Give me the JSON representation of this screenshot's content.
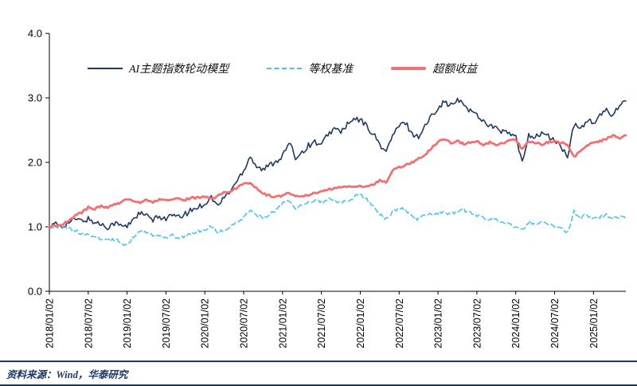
{
  "colors": {
    "model_line": "#1F3864",
    "benchmark_line": "#4DC3E8",
    "excess_line": "#F07173",
    "axis": "#000000",
    "footer_accent": "#1F3864",
    "background": "#FFFFFF"
  },
  "chart_data": {
    "type": "line",
    "title": "",
    "xlabel": "",
    "ylabel": "",
    "ylim": [
      0.0,
      4.0
    ],
    "y_ticks": [
      0.0,
      1.0,
      2.0,
      3.0,
      4.0
    ],
    "y_tick_labels": [
      "0.0",
      "1.0",
      "2.0",
      "3.0",
      "4.0"
    ],
    "x_unit": "monthly index starting 2018/01/02",
    "x_tick_positions": [
      0,
      6,
      12,
      18,
      24,
      30,
      36,
      42,
      48,
      54,
      60,
      66,
      72,
      78,
      84
    ],
    "x_tick_labels": [
      "2018/01/02",
      "2018/07/02",
      "2019/01/02",
      "2019/07/02",
      "2020/01/02",
      "2020/07/02",
      "2021/01/02",
      "2021/07/02",
      "2022/01/02",
      "2022/07/02",
      "2023/01/02",
      "2023/07/02",
      "2024/01/02",
      "2024/07/02",
      "2025/01/02"
    ],
    "grid": false,
    "legend_position": "top-inside",
    "series": [
      {
        "name": "AI主题指数轮动模型",
        "color": "#1F3864",
        "style": "solid",
        "width": 1.6,
        "noise": 0.045,
        "values": [
          1.0,
          1.04,
          1.01,
          1.07,
          1.12,
          1.09,
          1.12,
          1.07,
          1.04,
          1.0,
          1.06,
          1.02,
          1.0,
          1.14,
          1.21,
          1.17,
          1.1,
          1.16,
          1.13,
          1.18,
          1.14,
          1.2,
          1.26,
          1.31,
          1.36,
          1.46,
          1.32,
          1.46,
          1.56,
          1.72,
          1.88,
          2.1,
          1.94,
          1.88,
          1.96,
          2.02,
          2.1,
          2.3,
          2.08,
          2.16,
          2.26,
          2.32,
          2.26,
          2.44,
          2.52,
          2.48,
          2.58,
          2.66,
          2.66,
          2.56,
          2.44,
          2.28,
          2.16,
          2.42,
          2.56,
          2.62,
          2.44,
          2.4,
          2.56,
          2.72,
          2.86,
          2.94,
          2.88,
          2.96,
          2.9,
          2.8,
          2.74,
          2.64,
          2.58,
          2.52,
          2.48,
          2.44,
          2.4,
          1.98,
          2.44,
          2.38,
          2.46,
          2.4,
          2.34,
          2.24,
          2.08,
          2.58,
          2.52,
          2.66,
          2.6,
          2.72,
          2.8,
          2.74,
          2.9,
          2.95
        ]
      },
      {
        "name": "等权基准",
        "color": "#4DC3E8",
        "style": "dashed",
        "width": 1.6,
        "noise": 0.028,
        "values": [
          1.0,
          1.02,
          0.98,
          0.97,
          0.94,
          0.9,
          0.86,
          0.84,
          0.81,
          0.78,
          0.81,
          0.76,
          0.72,
          0.85,
          0.95,
          0.91,
          0.85,
          0.86,
          0.84,
          0.86,
          0.83,
          0.86,
          0.89,
          0.93,
          0.96,
          1.02,
          0.92,
          0.96,
          0.99,
          1.06,
          1.13,
          1.26,
          1.18,
          1.14,
          1.19,
          1.26,
          1.36,
          1.42,
          1.3,
          1.36,
          1.38,
          1.41,
          1.38,
          1.43,
          1.41,
          1.38,
          1.41,
          1.46,
          1.5,
          1.42,
          1.33,
          1.2,
          1.12,
          1.23,
          1.29,
          1.26,
          1.15,
          1.12,
          1.19,
          1.18,
          1.21,
          1.23,
          1.2,
          1.23,
          1.26,
          1.21,
          1.18,
          1.15,
          1.12,
          1.1,
          1.08,
          1.05,
          1.0,
          0.94,
          1.08,
          1.05,
          1.09,
          1.06,
          1.02,
          0.98,
          0.91,
          1.24,
          1.14,
          1.19,
          1.12,
          1.16,
          1.19,
          1.12,
          1.15,
          1.13
        ]
      },
      {
        "name": "超额收益",
        "color": "#F07173",
        "style": "solid",
        "width": 2.8,
        "noise": 0.016,
        "values": [
          1.0,
          1.02,
          1.04,
          1.1,
          1.18,
          1.22,
          1.3,
          1.28,
          1.32,
          1.3,
          1.34,
          1.38,
          1.44,
          1.4,
          1.38,
          1.42,
          1.38,
          1.42,
          1.4,
          1.43,
          1.44,
          1.42,
          1.45,
          1.45,
          1.46,
          1.43,
          1.48,
          1.53,
          1.56,
          1.61,
          1.66,
          1.68,
          1.6,
          1.52,
          1.48,
          1.47,
          1.48,
          1.53,
          1.49,
          1.47,
          1.5,
          1.52,
          1.55,
          1.58,
          1.6,
          1.62,
          1.63,
          1.62,
          1.63,
          1.62,
          1.66,
          1.72,
          1.68,
          1.88,
          1.92,
          1.96,
          2.0,
          2.06,
          2.12,
          2.22,
          2.32,
          2.36,
          2.3,
          2.33,
          2.28,
          2.31,
          2.33,
          2.28,
          2.31,
          2.28,
          2.3,
          2.33,
          2.36,
          2.2,
          2.32,
          2.3,
          2.28,
          2.31,
          2.33,
          2.31,
          2.28,
          2.08,
          2.18,
          2.26,
          2.3,
          2.33,
          2.36,
          2.42,
          2.37,
          2.42
        ]
      }
    ]
  },
  "footer": {
    "source_text": "资料来源：Wind，华泰研究"
  }
}
